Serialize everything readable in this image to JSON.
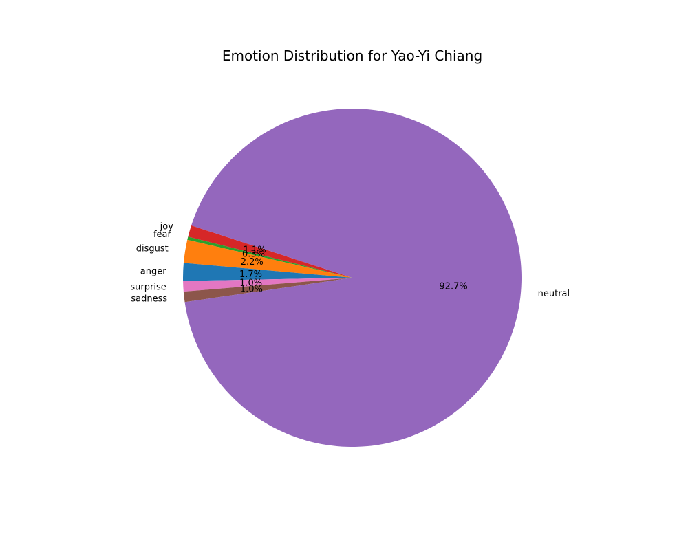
{
  "chart_data": {
    "type": "pie",
    "title": "Emotion Distribution for Yao-Yi Chiang",
    "slices": [
      {
        "label": "joy",
        "value": 1.1,
        "pct_label": "1.1%",
        "color": "#d62728"
      },
      {
        "label": "fear",
        "value": 0.3,
        "pct_label": "0.3%",
        "color": "#2ca02c"
      },
      {
        "label": "disgust",
        "value": 2.2,
        "pct_label": "2.2%",
        "color": "#ff7f0e"
      },
      {
        "label": "anger",
        "value": 1.7,
        "pct_label": "1.7%",
        "color": "#1f77b4"
      },
      {
        "label": "surprise",
        "value": 1.0,
        "pct_label": "1.0%",
        "color": "#e377c2"
      },
      {
        "label": "sadness",
        "value": 1.0,
        "pct_label": "1.0%",
        "color": "#8c564b"
      },
      {
        "label": "neutral",
        "value": 92.7,
        "pct_label": "92.7%",
        "color": "#9467bd"
      }
    ]
  }
}
